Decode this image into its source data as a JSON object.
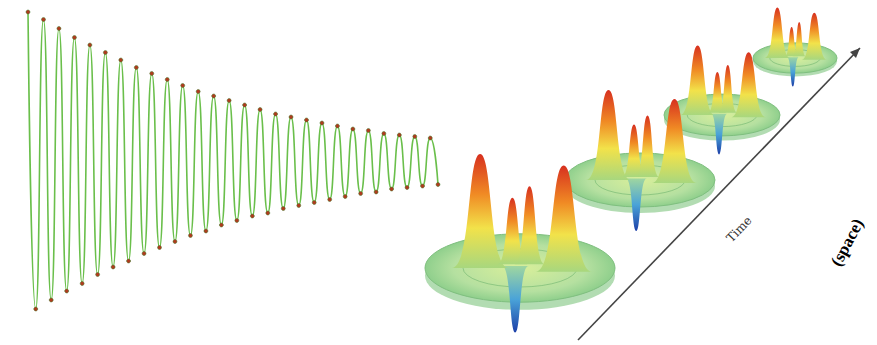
{
  "chart_data": {
    "type": "line",
    "x": [
      0,
      1,
      2,
      3,
      4,
      5,
      6,
      7,
      8,
      9,
      10,
      11,
      12,
      13,
      14,
      15,
      16,
      17,
      18,
      19,
      20,
      21,
      22,
      23,
      24,
      25,
      26,
      27,
      28,
      29,
      30,
      31,
      32,
      33,
      34,
      35,
      36,
      37,
      38,
      39,
      40,
      41,
      42,
      43,
      44,
      45,
      46,
      47,
      48,
      49,
      50,
      51,
      52,
      53
    ],
    "values": [
      1.0,
      -0.98,
      0.95,
      -0.92,
      0.89,
      -0.86,
      0.83,
      -0.81,
      0.78,
      -0.75,
      0.73,
      -0.7,
      0.68,
      -0.66,
      0.63,
      -0.61,
      0.59,
      -0.57,
      0.55,
      -0.53,
      0.51,
      -0.49,
      0.47,
      -0.46,
      0.44,
      -0.42,
      0.41,
      -0.39,
      0.38,
      -0.36,
      0.35,
      -0.34,
      0.32,
      -0.31,
      0.3,
      -0.29,
      0.28,
      -0.27,
      0.26,
      -0.25,
      0.24,
      -0.23,
      0.22,
      -0.21,
      0.21,
      -0.2,
      0.19,
      -0.18,
      0.18,
      -0.17,
      0.17,
      -0.16,
      0.16,
      -0.15
    ],
    "xlim": [
      0,
      53
    ],
    "ylim": [
      -1,
      1
    ],
    "color": "#6abf4b",
    "marker": "circle",
    "tick_labels": false,
    "grid": false,
    "annotations": [
      "Time",
      "(space)"
    ]
  }
}
